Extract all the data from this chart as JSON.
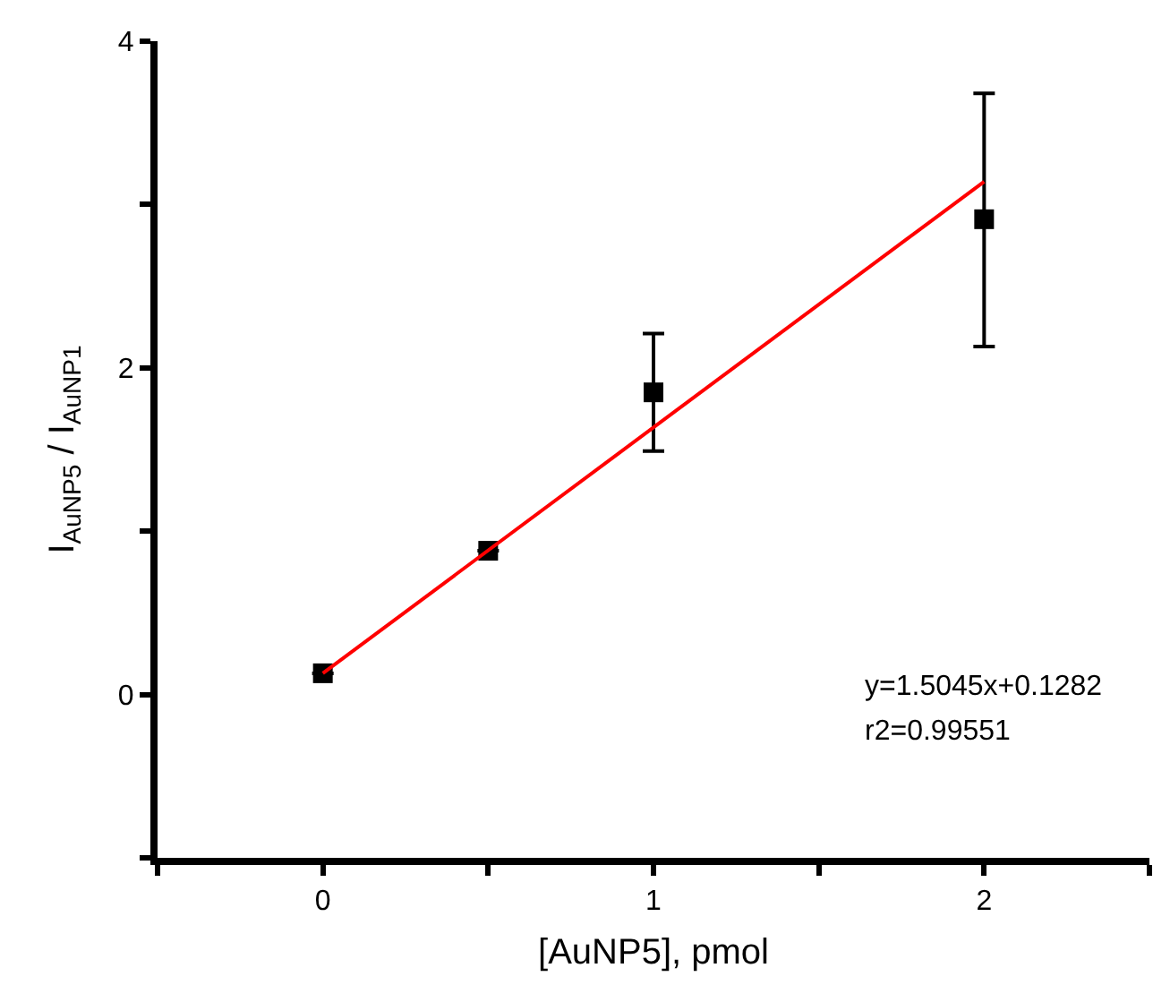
{
  "chart_data": {
    "type": "scatter",
    "xlabel": "[AuNP5], pmol",
    "ylabel": "I$_{AuNP5}$ / I$_{AuNP1}$",
    "x": [
      0,
      0.5,
      1,
      2
    ],
    "series": [
      {
        "color": "#000000",
        "values": [
          0.13,
          0.88,
          1.85,
          2.91
        ],
        "errors": [
          null,
          null,
          [
            1.49,
            2.21
          ],
          [
            2.13,
            3.68
          ]
        ],
        "marker": "square"
      },
      {
        "type": "line",
        "color": "#ff0000",
        "x": [
          0,
          2
        ],
        "values": [
          0.13,
          3.14
        ],
        "line_style": "solid",
        "marker": "none"
      }
    ],
    "xlim": [
      -0.5,
      2.5
    ],
    "xticks": [
      {
        "value": -0.5,
        "label": null
      },
      0,
      {
        "value": 0.5,
        "label": null
      },
      1,
      {
        "value": 1.5,
        "label": null
      },
      2,
      {
        "value": 2.5,
        "label": null
      }
    ],
    "ylim": [
      -1,
      4
    ],
    "yticks": [
      {
        "value": -1,
        "label": null
      },
      0,
      {
        "value": 1,
        "label": null
      },
      2,
      {
        "value": 3,
        "label": null
      },
      4
    ],
    "annotations": [
      "y=1.5045x+0.1282",
      "r2=0.99551"
    ]
  }
}
